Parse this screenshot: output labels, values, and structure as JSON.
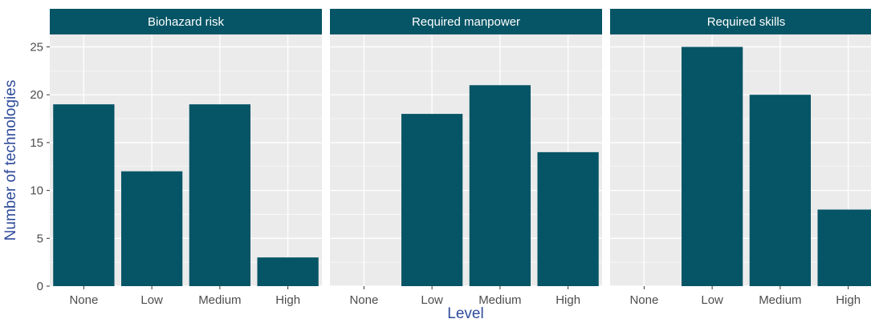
{
  "chart_data": {
    "type": "bar",
    "xlabel": "Level",
    "ylabel": "Number of technologies",
    "ylim": [
      0,
      26.3
    ],
    "yticks": [
      0,
      5,
      10,
      15,
      20,
      25
    ],
    "grid": true,
    "bar_color": "#065566",
    "strip_color": "#065566",
    "panel_background": "#ebebeb",
    "categories": [
      "None",
      "Low",
      "Medium",
      "High"
    ],
    "facets": [
      {
        "title": "Biohazard risk",
        "values": [
          19,
          12,
          19,
          3
        ]
      },
      {
        "title": "Required manpower",
        "values": [
          0,
          18,
          21,
          14
        ]
      },
      {
        "title": "Required skills",
        "values": [
          0,
          25,
          20,
          8
        ]
      }
    ]
  }
}
